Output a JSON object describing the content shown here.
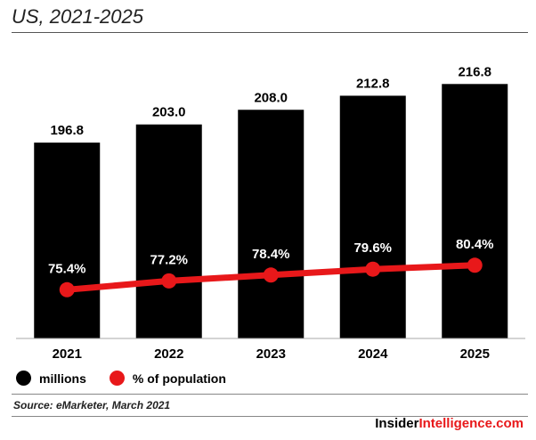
{
  "chart_title": "US, 2021-2025",
  "legend": [
    {
      "label": "millions",
      "color": "#000000"
    },
    {
      "label": "% of population",
      "color": "#e8181a"
    }
  ],
  "source": "Source: eMarketer, March 2021",
  "brand": "InsiderIntelligence.com",
  "chart_data": {
    "type": "bar",
    "title": "US, 2021-2025",
    "categories": [
      "2021",
      "2022",
      "2023",
      "2024",
      "2025"
    ],
    "series": [
      {
        "name": "millions",
        "type": "bar",
        "values": [
          196.8,
          203.0,
          208.0,
          212.8,
          216.8
        ],
        "labels": [
          "196.8",
          "203.0",
          "208.0",
          "212.8",
          "216.8"
        ],
        "color": "#000000"
      },
      {
        "name": "% of population",
        "type": "line",
        "values": [
          75.4,
          77.2,
          78.4,
          79.6,
          80.4
        ],
        "labels": [
          "75.4%",
          "77.2%",
          "78.4%",
          "79.6%",
          "80.4%"
        ],
        "color": "#e8181a"
      }
    ],
    "grid": false,
    "legend_position": "bottom-left"
  }
}
